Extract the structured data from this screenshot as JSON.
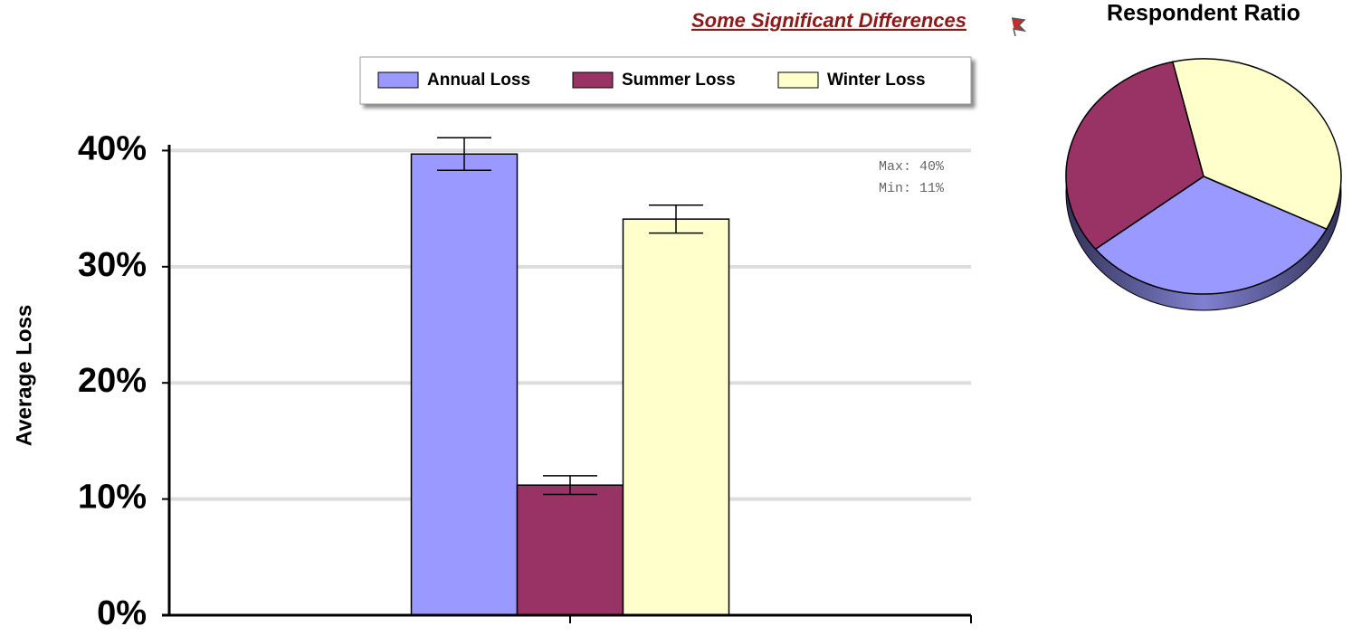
{
  "chart_data": [
    {
      "type": "bar",
      "title": "Some Significant Differences",
      "y_label": "Average Loss",
      "annotations": [
        "Max: 40%",
        "Min: 11%"
      ],
      "categories": [
        null
      ],
      "series": [
        {
          "name": "Annual Loss",
          "color": "#9999ff",
          "values": [
            39.7
          ],
          "errors": [
            1.4
          ]
        },
        {
          "name": "Summer Loss",
          "color": "#993366",
          "values": [
            11.2
          ],
          "errors": [
            0.8
          ]
        },
        {
          "name": "Winter Loss",
          "color": "#ffffcc",
          "values": [
            34.1
          ],
          "errors": [
            1.2
          ]
        }
      ],
      "ylim": [
        0,
        40.5
      ],
      "yticks": [
        {
          "value": 0,
          "label": "0%"
        },
        {
          "value": 10,
          "label": "10%"
        },
        {
          "value": 20,
          "label": "20%"
        },
        {
          "value": 30,
          "label": "30%"
        },
        {
          "value": 40,
          "label": "40%"
        }
      ],
      "grid": true,
      "legend": "top"
    },
    {
      "type": "pie",
      "title": "Respondent Ratio",
      "values": [
        36,
        32,
        32
      ],
      "colors": [
        "#ffffcc",
        "#9999ff",
        "#993366"
      ]
    }
  ]
}
